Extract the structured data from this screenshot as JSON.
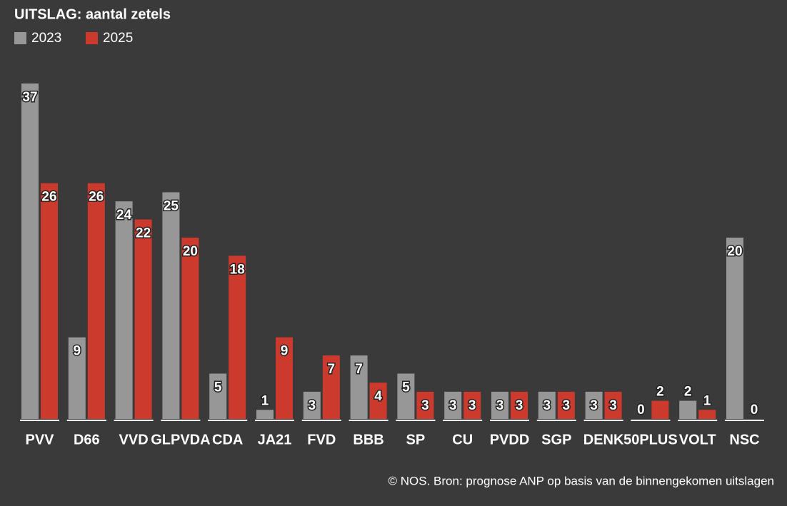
{
  "chart_data": {
    "type": "bar",
    "title": "UITSLAG: aantal zetels",
    "categories": [
      "PVV",
      "D66",
      "VVD",
      "GLPVDA",
      "CDA",
      "JA21",
      "FVD",
      "BBB",
      "SP",
      "CU",
      "PVDD",
      "SGP",
      "DENK",
      "50PLUS",
      "VOLT",
      "NSC"
    ],
    "series": [
      {
        "name": "2023",
        "color": "#979797",
        "values": [
          37,
          9,
          24,
          25,
          5,
          1,
          3,
          7,
          5,
          3,
          3,
          3,
          3,
          0,
          2,
          20
        ]
      },
      {
        "name": "2025",
        "color": "#cc3a2e",
        "values": [
          26,
          26,
          22,
          20,
          18,
          9,
          7,
          4,
          3,
          3,
          3,
          3,
          3,
          2,
          1,
          0
        ]
      }
    ],
    "ylim": [
      0,
      37
    ],
    "source": "© NOS. Bron: prognose ANP op basis van de binnengekomen uitslagen"
  }
}
